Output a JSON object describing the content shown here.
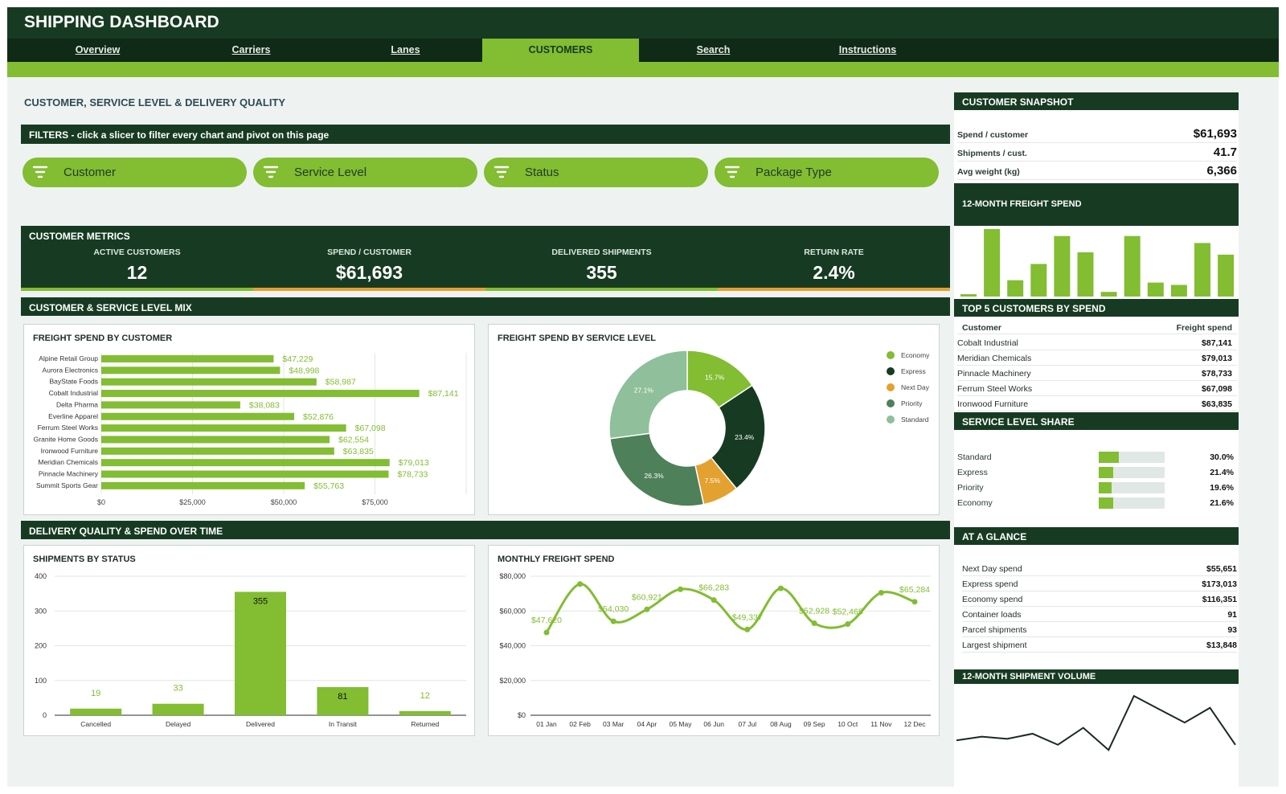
{
  "app": {
    "title": "SHIPPING DASHBOARD"
  },
  "tabs": [
    {
      "label": "Overview"
    },
    {
      "label": "Carriers"
    },
    {
      "label": "Lanes"
    },
    {
      "label": "CUSTOMERS"
    },
    {
      "label": "Search"
    },
    {
      "label": "Instructions"
    }
  ],
  "page": {
    "heading": "CUSTOMER, SERVICE LEVEL & DELIVERY QUALITY"
  },
  "filters": {
    "banner": "FILTERS  -  click a slicer to filter every chart and pivot on this page",
    "slicers": [
      {
        "label": "Customer"
      },
      {
        "label": "Service Level"
      },
      {
        "label": "Status"
      },
      {
        "label": "Package Type"
      }
    ]
  },
  "metrics": {
    "title": "CUSTOMER METRICS",
    "items": [
      {
        "label": "ACTIVE CUSTOMERS",
        "value": "12"
      },
      {
        "label": "SPEND / CUSTOMER",
        "value": "$61,693"
      },
      {
        "label": "DELIVERED SHIPMENTS",
        "value": "355"
      },
      {
        "label": "RETURN RATE",
        "value": "2.4%"
      }
    ]
  },
  "sections": {
    "mix": "CUSTOMER & SERVICE LEVEL MIX",
    "time": "DELIVERY QUALITY & SPEND OVER TIME"
  },
  "colors": {
    "green": "#82bd32",
    "dark": "#173b22",
    "orange": "#e3a12f",
    "priority": "#4e8059",
    "standard": "#8fbf9b"
  },
  "chart_data": [
    {
      "id": "spend_by_customer",
      "type": "bar",
      "orientation": "horizontal",
      "title": "FREIGHT SPEND BY CUSTOMER",
      "categories": [
        "Alpine Retail Group",
        "Aurora Electronics",
        "BayState Foods",
        "Cobalt Industrial",
        "Delta Pharma",
        "Everline Apparel",
        "Ferrum Steel Works",
        "Granite Home Goods",
        "Ironwood Furniture",
        "Meridian Chemicals",
        "Pinnacle Machinery",
        "Summit Sports Gear"
      ],
      "values": [
        47229,
        48998,
        58987,
        87141,
        38083,
        52876,
        67098,
        62554,
        63835,
        79013,
        78733,
        55763
      ],
      "value_labels": [
        "$47,229",
        "$48,998",
        "$58,987",
        "$87,141",
        "$38,083",
        "$52,876",
        "$67,098",
        "$62,554",
        "$63,835",
        "$79,013",
        "$78,733",
        "$55,763"
      ],
      "xlim": [
        0,
        100000
      ],
      "ticks": [
        0,
        25000,
        50000,
        75000
      ],
      "tick_labels": [
        "$0",
        "$25,000",
        "$50,000",
        "$75,000"
      ]
    },
    {
      "id": "spend_by_service",
      "type": "pie",
      "title": "FREIGHT SPEND BY SERVICE LEVEL",
      "labels": [
        "Economy",
        "Express",
        "Next Day",
        "Priority",
        "Standard"
      ],
      "values": [
        15.7,
        23.4,
        7.5,
        26.3,
        27.1
      ],
      "value_labels": [
        "15.7%",
        "23.4%",
        "7.5%",
        "26.3%",
        "27.1%"
      ],
      "colors": [
        "#82bd32",
        "#173b22",
        "#e3a12f",
        "#4e8059",
        "#8fbf9b"
      ],
      "legend": "right"
    },
    {
      "id": "shipments_by_status",
      "type": "bar",
      "title": "SHIPMENTS BY STATUS",
      "categories": [
        "Cancelled",
        "Delayed",
        "Delivered",
        "In Transit",
        "Returned"
      ],
      "values": [
        19,
        33,
        355,
        81,
        12
      ],
      "value_labels": [
        "19",
        "33",
        "355",
        "81",
        "12"
      ],
      "ylim": [
        0,
        400
      ],
      "ticks": [
        0,
        100,
        200,
        300,
        400
      ],
      "tick_labels": [
        "0",
        "100",
        "200",
        "300",
        "400"
      ]
    },
    {
      "id": "monthly_spend",
      "type": "line",
      "title": "MONTHLY FREIGHT SPEND",
      "x": [
        "01 Jan",
        "02 Feb",
        "03 Mar",
        "04 Apr",
        "05 May",
        "06 Jun",
        "07 Jul",
        "08 Aug",
        "09 Sep",
        "10 Oct",
        "11 Nov",
        "12 Dec"
      ],
      "values": [
        47620,
        75500,
        54030,
        60921,
        72500,
        66283,
        49337,
        73000,
        52928,
        52465,
        70500,
        65284
      ],
      "point_labels": {
        "0": "$47,620",
        "2": "$54,030",
        "3": "$60,921",
        "5": "$66,283",
        "6": "$49,337",
        "8": "$52,928",
        "9": "$52,465",
        "11": "$65,284"
      },
      "ylim": [
        0,
        80000
      ],
      "ticks": [
        0,
        20000,
        40000,
        60000,
        80000
      ],
      "tick_labels": [
        "$0",
        "$20,000",
        "$40,000",
        "$60,000",
        "$80,000"
      ]
    },
    {
      "id": "spend_12mo",
      "type": "bar",
      "title": "12-MONTH FREIGHT SPEND",
      "values": [
        1,
        29,
        7,
        14,
        26,
        19,
        2,
        26,
        6,
        5,
        23,
        18
      ]
    },
    {
      "id": "volume_12mo",
      "type": "line",
      "title": "12-MONTH SHIPMENT VOLUME",
      "values": [
        28,
        33,
        30,
        37,
        22,
        45,
        15,
        88,
        70,
        52,
        72,
        22
      ]
    }
  ],
  "snapshot": {
    "title": "CUSTOMER SNAPSHOT",
    "rows": [
      {
        "label": "Spend / customer",
        "value": "$61,693"
      },
      {
        "label": "Shipments / cust.",
        "value": "41.7"
      },
      {
        "label": "Avg weight (kg)",
        "value": "6,366"
      }
    ]
  },
  "top5": {
    "title": "TOP 5 CUSTOMERS BY SPEND",
    "col1": "Customer",
    "col2": "Freight spend",
    "rows": [
      {
        "name": "Cobalt Industrial",
        "value": "$87,141"
      },
      {
        "name": "Meridian Chemicals",
        "value": "$79,013"
      },
      {
        "name": "Pinnacle Machinery",
        "value": "$78,733"
      },
      {
        "name": "Ferrum Steel Works",
        "value": "$67,098"
      },
      {
        "name": "Ironwood Furniture",
        "value": "$63,835"
      }
    ]
  },
  "service_share": {
    "title": "SERVICE LEVEL SHARE",
    "rows": [
      {
        "name": "Standard",
        "pct": 30.0,
        "value": "30.0%"
      },
      {
        "name": "Express",
        "pct": 21.4,
        "value": "21.4%"
      },
      {
        "name": "Priority",
        "pct": 19.6,
        "value": "19.6%"
      },
      {
        "name": "Economy",
        "pct": 21.6,
        "value": "21.6%"
      }
    ]
  },
  "glance": {
    "title": "AT A GLANCE",
    "rows": [
      {
        "label": "Next Day spend",
        "value": "$55,651"
      },
      {
        "label": "Express spend",
        "value": "$173,013"
      },
      {
        "label": "Economy spend",
        "value": "$116,351"
      },
      {
        "label": "Container loads",
        "value": "91"
      },
      {
        "label": "Parcel shipments",
        "value": "93"
      },
      {
        "label": "Largest shipment",
        "value": "$13,848"
      }
    ]
  }
}
